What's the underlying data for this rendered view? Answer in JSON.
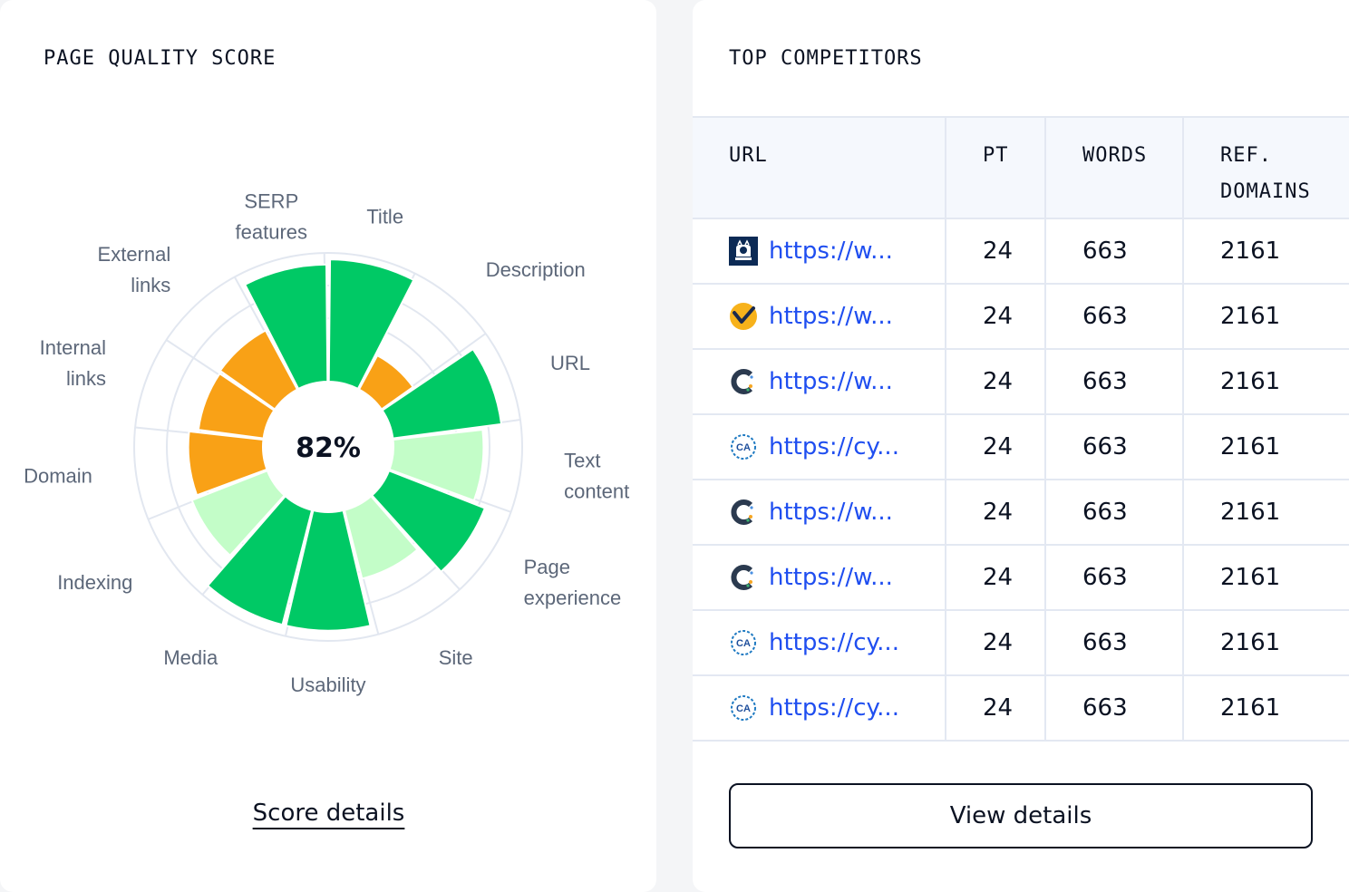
{
  "quality": {
    "title": "PAGE QUALITY SCORE",
    "score_details_label": "Score details"
  },
  "chart_data": {
    "type": "polar-bar",
    "center_label": "82%",
    "rmax": 10,
    "colors": {
      "high": "#00c965",
      "medium": "#c3fdc8",
      "low": "#f9a116"
    },
    "categories": [
      {
        "label": [
          "Title"
        ],
        "value": 9.5,
        "level": "high"
      },
      {
        "label": [
          "Description"
        ],
        "value": 3.0,
        "level": "low"
      },
      {
        "label": [
          "URL"
        ],
        "value": 8.5,
        "level": "high"
      },
      {
        "label": [
          "Text",
          "content"
        ],
        "value": 7.0,
        "level": "medium"
      },
      {
        "label": [
          "Page",
          "experience"
        ],
        "value": 8.0,
        "level": "high"
      },
      {
        "label": [
          "Site"
        ],
        "value": 5.5,
        "level": "medium"
      },
      {
        "label": [
          "Usability"
        ],
        "value": 9.2,
        "level": "high"
      },
      {
        "label": [
          "Media"
        ],
        "value": 9.2,
        "level": "high"
      },
      {
        "label": [
          "Indexing"
        ],
        "value": 6.3,
        "level": "medium"
      },
      {
        "label": [
          "Domain"
        ],
        "value": 5.8,
        "level": "low"
      },
      {
        "label": [
          "Internal",
          "links"
        ],
        "value": 5.1,
        "level": "low"
      },
      {
        "label": [
          "External",
          "links"
        ],
        "value": 5.2,
        "level": "low"
      },
      {
        "label": [
          "SERP",
          "features"
        ],
        "value": 9.1,
        "level": "high"
      }
    ]
  },
  "competitors": {
    "title": "TOP COMPETITORS",
    "headers": {
      "url": "URL",
      "pt": "PT",
      "words": "WORDS",
      "ref_line1": "REF.",
      "ref_line2": "DOMAINS"
    },
    "rows": [
      {
        "icon": "gov-crest-icon",
        "url": "https://w...",
        "pt": "24",
        "words": "663",
        "ref": "2161"
      },
      {
        "icon": "checkmark-logo-icon",
        "url": "https://w...",
        "pt": "24",
        "words": "663",
        "ref": "2161"
      },
      {
        "icon": "c-logo-icon",
        "url": "https://w...",
        "pt": "24",
        "words": "663",
        "ref": "2161"
      },
      {
        "icon": "ca-badge-icon",
        "url": "https://cy...",
        "pt": "24",
        "words": "663",
        "ref": "2161"
      },
      {
        "icon": "c-logo-icon",
        "url": "https://w...",
        "pt": "24",
        "words": "663",
        "ref": "2161"
      },
      {
        "icon": "c-logo-icon",
        "url": "https://w...",
        "pt": "24",
        "words": "663",
        "ref": "2161"
      },
      {
        "icon": "ca-badge-icon",
        "url": "https://cy...",
        "pt": "24",
        "words": "663",
        "ref": "2161"
      },
      {
        "icon": "ca-badge-icon",
        "url": "https://cy...",
        "pt": "24",
        "words": "663",
        "ref": "2161"
      }
    ],
    "view_details_label": "View details"
  }
}
